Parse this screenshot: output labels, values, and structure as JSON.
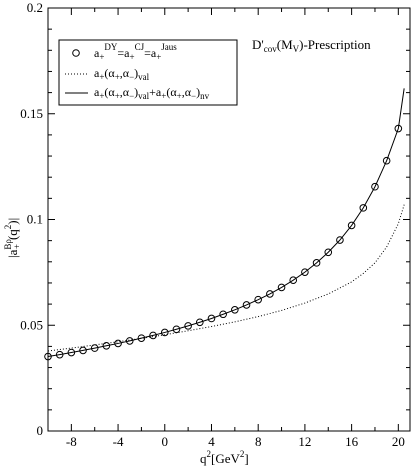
{
  "chart_data": {
    "type": "line",
    "annotation": {
      "main": "D'",
      "sub1": "cov",
      "mid": "(M",
      "sub2": "V",
      "tail": ")-Prescription"
    },
    "xlabel": {
      "main": "q",
      "sup": "2",
      "unit": "[GeV",
      "sup2": "2",
      "close": "]"
    },
    "ylabel": {
      "bar_open": "|a",
      "sup": "Bρ",
      "sub": "+",
      "rest": "(q",
      "sup2": "2",
      "close": ")|"
    },
    "xlim": [
      -10,
      21
    ],
    "ylim": [
      0,
      0.2
    ],
    "xticks": [
      -8,
      -4,
      0,
      4,
      8,
      12,
      16,
      20
    ],
    "yticks": [
      0,
      0.05,
      0.1,
      0.15,
      0.2
    ],
    "ytick_labels": [
      "0",
      "0.05",
      "0.1",
      "0.15",
      "0.2"
    ],
    "legend_position": "top-left",
    "legend": [
      {
        "text": "a+DY=a+CJ=a+Jaus",
        "main": "a",
        "sub1": "+",
        "sup1": "DY",
        "mid1": "=a",
        "sub2": "+",
        "sup2": "CJ",
        "mid2": "=a",
        "sub3": "+",
        "sup3": "Jaus"
      },
      {
        "text": "a+(α+,α−)val",
        "main": "a",
        "sub1": "+",
        "p1": "(α",
        "sub2": "+",
        "p2": ",α",
        "sub3": "−",
        "p3": ")",
        "sub4": "val"
      },
      {
        "text": "a+(α+,α−)val+a+(α+,α−)nv",
        "main": "a",
        "sub1": "+",
        "p1": "(α",
        "sub2": "+",
        "p2": ",α",
        "sub3": "−",
        "p3": ")",
        "sub4": "val",
        "p4": "+a",
        "sub5": "+",
        "p5": "(α",
        "sub6": "+",
        "p6": ",α",
        "sub7": "−",
        "p7": ")",
        "sub8": "nv"
      }
    ],
    "series": [
      {
        "style": "circles",
        "x": [
          -10,
          -9,
          -8,
          -7,
          -6,
          -5,
          -4,
          -3,
          -2,
          -1,
          0,
          1,
          2,
          3,
          4,
          5,
          6,
          7,
          8,
          9,
          10,
          11,
          12,
          13,
          14,
          15,
          16,
          17,
          18,
          19,
          20
        ],
        "y": [
          0.0352,
          0.0361,
          0.0371,
          0.0381,
          0.0392,
          0.0403,
          0.0414,
          0.0426,
          0.0439,
          0.0452,
          0.0466,
          0.0481,
          0.0497,
          0.0514,
          0.0532,
          0.0552,
          0.0573,
          0.0596,
          0.0621,
          0.0648,
          0.0679,
          0.0713,
          0.0751,
          0.0795,
          0.0845,
          0.0903,
          0.0972,
          0.1055,
          0.1155,
          0.1278,
          0.143
        ]
      },
      {
        "style": "dotted",
        "x": [
          -10,
          -8,
          -6,
          -4,
          -2,
          0,
          2,
          4,
          6,
          8,
          10,
          12,
          14,
          16,
          17,
          18,
          19,
          20,
          20.5
        ],
        "y": [
          0.0378,
          0.0392,
          0.0407,
          0.0422,
          0.0438,
          0.0455,
          0.0474,
          0.0494,
          0.0516,
          0.0541,
          0.057,
          0.0605,
          0.0648,
          0.0705,
          0.0745,
          0.0795,
          0.087,
          0.098,
          0.107
        ]
      },
      {
        "style": "solid",
        "x": [
          -10,
          -9,
          -8,
          -7,
          -6,
          -5,
          -4,
          -3,
          -2,
          -1,
          0,
          1,
          2,
          3,
          4,
          5,
          6,
          7,
          8,
          9,
          10,
          11,
          12,
          13,
          14,
          15,
          16,
          17,
          18,
          19,
          20,
          20.5
        ],
        "y": [
          0.0352,
          0.0361,
          0.0371,
          0.0381,
          0.0392,
          0.0403,
          0.0414,
          0.0426,
          0.0439,
          0.0452,
          0.0466,
          0.0481,
          0.0497,
          0.0514,
          0.0532,
          0.0552,
          0.0573,
          0.0596,
          0.0621,
          0.0648,
          0.0679,
          0.0713,
          0.0751,
          0.0795,
          0.0845,
          0.0903,
          0.0972,
          0.1055,
          0.1155,
          0.1278,
          0.143,
          0.162
        ]
      }
    ]
  }
}
